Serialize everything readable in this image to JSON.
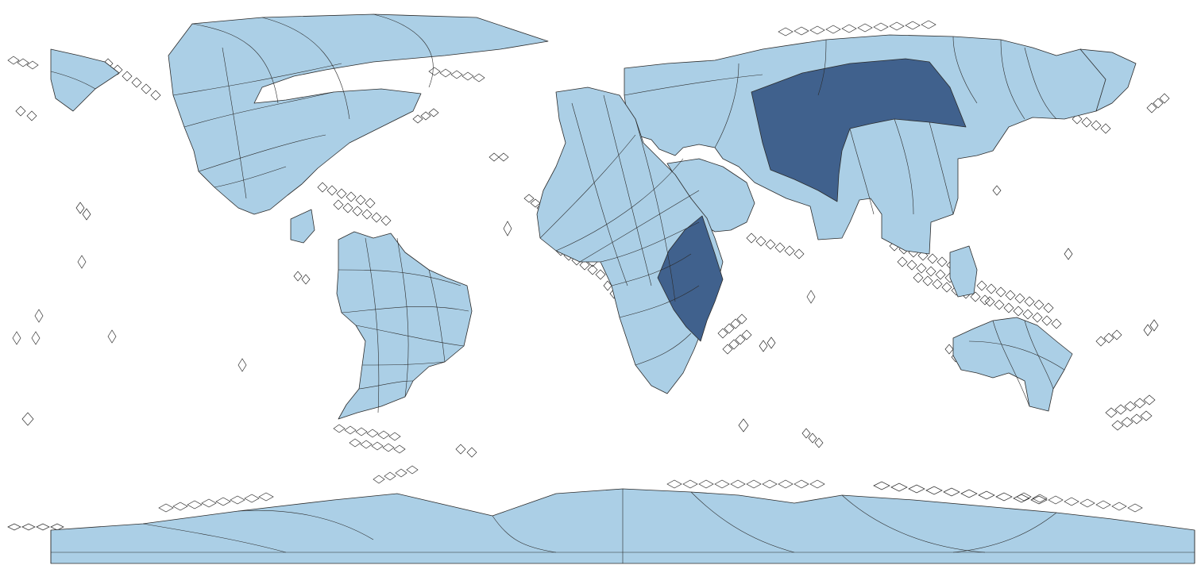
{
  "map": {
    "projection": "equirectangular",
    "style": "multi-order HEALPix-like tiling of the world",
    "colors": {
      "background": "#ffffff",
      "tile_outline": "#2b2b2b",
      "coarse_tile_fill": "#abcfe6",
      "highlight_tile_fill": "#40618d",
      "fine_tile_fill": "#ffffff"
    },
    "highlighted_regions": [
      "central-asia-block",
      "east-africa-block"
    ]
  }
}
